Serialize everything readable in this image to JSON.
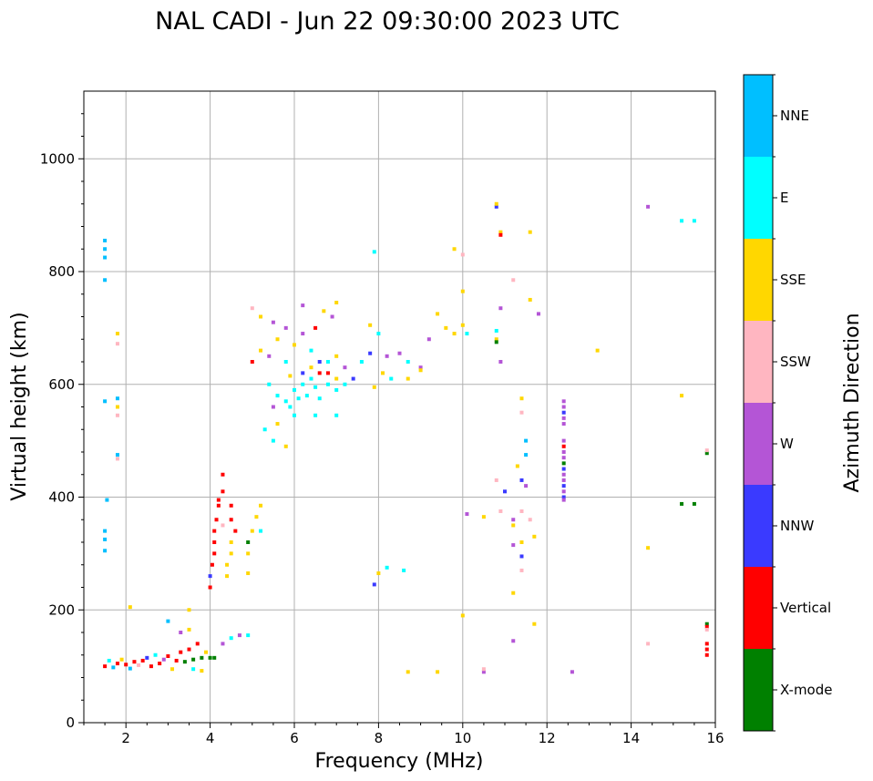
{
  "chart_data": {
    "type": "scatter",
    "title": "NAL CADI - Jun 22 09:30:00 2023 UTC",
    "xlabel": "Frequency (MHz)",
    "ylabel": "Virtual height (km)",
    "xlim": [
      1,
      16
    ],
    "ylim": [
      0,
      1120
    ],
    "xticks": [
      2,
      4,
      6,
      8,
      10,
      12,
      14,
      16
    ],
    "xtick_labels": [
      "2",
      "4",
      "6",
      "8",
      "10",
      "12",
      "14",
      "16"
    ],
    "yticks": [
      0,
      200,
      400,
      600,
      800,
      1000
    ],
    "ytick_labels": [
      "0",
      "200",
      "400",
      "600",
      "800",
      "1000"
    ],
    "grid": true,
    "colorbar": {
      "label": "Azimuth Direction",
      "categories": [
        {
          "name": "X-mode",
          "color": "#008000"
        },
        {
          "name": "Vertical",
          "color": "#ff0000"
        },
        {
          "name": "NNW",
          "color": "#3a3aff"
        },
        {
          "name": "W",
          "color": "#b455d6"
        },
        {
          "name": "SSW",
          "color": "#ffb6c1"
        },
        {
          "name": "SSE",
          "color": "#ffd700"
        },
        {
          "name": "E",
          "color": "#00ffff"
        },
        {
          "name": "NNE",
          "color": "#00bfff"
        }
      ]
    },
    "points": [
      {
        "f": 1.5,
        "h": 855,
        "c": "NNE"
      },
      {
        "f": 1.5,
        "h": 840,
        "c": "NNE"
      },
      {
        "f": 1.5,
        "h": 825,
        "c": "NNE"
      },
      {
        "f": 1.5,
        "h": 785,
        "c": "NNE"
      },
      {
        "f": 1.5,
        "h": 570,
        "c": "NNE"
      },
      {
        "f": 1.5,
        "h": 340,
        "c": "NNE"
      },
      {
        "f": 1.5,
        "h": 325,
        "c": "NNE"
      },
      {
        "f": 1.5,
        "h": 305,
        "c": "NNE"
      },
      {
        "f": 1.55,
        "h": 395,
        "c": "NNE"
      },
      {
        "f": 1.8,
        "h": 690,
        "c": "SSE"
      },
      {
        "f": 1.8,
        "h": 672,
        "c": "SSW"
      },
      {
        "f": 1.8,
        "h": 575,
        "c": "NNE"
      },
      {
        "f": 1.8,
        "h": 560,
        "c": "SSE"
      },
      {
        "f": 1.8,
        "h": 545,
        "c": "SSW"
      },
      {
        "f": 1.8,
        "h": 475,
        "c": "NNE"
      },
      {
        "f": 1.8,
        "h": 468,
        "c": "SSW"
      },
      {
        "f": 1.5,
        "h": 100,
        "c": "Vertical"
      },
      {
        "f": 1.6,
        "h": 110,
        "c": "E"
      },
      {
        "f": 1.7,
        "h": 98,
        "c": "NNE"
      },
      {
        "f": 1.8,
        "h": 105,
        "c": "Vertical"
      },
      {
        "f": 1.9,
        "h": 112,
        "c": "SSE"
      },
      {
        "f": 2.0,
        "h": 103,
        "c": "Vertical"
      },
      {
        "f": 2.1,
        "h": 96,
        "c": "NNE"
      },
      {
        "f": 2.2,
        "h": 108,
        "c": "Vertical"
      },
      {
        "f": 2.3,
        "h": 102,
        "c": "SSW"
      },
      {
        "f": 2.4,
        "h": 110,
        "c": "Vertical"
      },
      {
        "f": 2.5,
        "h": 115,
        "c": "NNW"
      },
      {
        "f": 2.6,
        "h": 100,
        "c": "Vertical"
      },
      {
        "f": 2.7,
        "h": 120,
        "c": "E"
      },
      {
        "f": 2.8,
        "h": 105,
        "c": "Vertical"
      },
      {
        "f": 2.9,
        "h": 112,
        "c": "W"
      },
      {
        "f": 3.0,
        "h": 118,
        "c": "Vertical"
      },
      {
        "f": 3.1,
        "h": 95,
        "c": "SSE"
      },
      {
        "f": 3.2,
        "h": 110,
        "c": "Vertical"
      },
      {
        "f": 3.3,
        "h": 125,
        "c": "Vertical"
      },
      {
        "f": 3.4,
        "h": 108,
        "c": "X-mode"
      },
      {
        "f": 3.5,
        "h": 130,
        "c": "Vertical"
      },
      {
        "f": 3.6,
        "h": 112,
        "c": "X-mode"
      },
      {
        "f": 3.7,
        "h": 140,
        "c": "Vertical"
      },
      {
        "f": 3.8,
        "h": 115,
        "c": "X-mode"
      },
      {
        "f": 3.9,
        "h": 125,
        "c": "SSE"
      },
      {
        "f": 4.0,
        "h": 115,
        "c": "X-mode"
      },
      {
        "f": 4.1,
        "h": 115,
        "c": "X-mode"
      },
      {
        "f": 3.5,
        "h": 165,
        "c": "SSE"
      },
      {
        "f": 3.5,
        "h": 200,
        "c": "SSE"
      },
      {
        "f": 2.1,
        "h": 205,
        "c": "SSE"
      },
      {
        "f": 3.0,
        "h": 180,
        "c": "NNE"
      },
      {
        "f": 3.3,
        "h": 160,
        "c": "W"
      },
      {
        "f": 4.3,
        "h": 140,
        "c": "W"
      },
      {
        "f": 4.5,
        "h": 150,
        "c": "E"
      },
      {
        "f": 4.7,
        "h": 155,
        "c": "W"
      },
      {
        "f": 4.9,
        "h": 155,
        "c": "E"
      },
      {
        "f": 3.6,
        "h": 95,
        "c": "E"
      },
      {
        "f": 3.8,
        "h": 92,
        "c": "SSE"
      },
      {
        "f": 4.0,
        "h": 240,
        "c": "Vertical"
      },
      {
        "f": 4.0,
        "h": 260,
        "c": "NNW"
      },
      {
        "f": 4.05,
        "h": 280,
        "c": "Vertical"
      },
      {
        "f": 4.1,
        "h": 300,
        "c": "Vertical"
      },
      {
        "f": 4.1,
        "h": 320,
        "c": "Vertical"
      },
      {
        "f": 4.1,
        "h": 340,
        "c": "Vertical"
      },
      {
        "f": 4.15,
        "h": 360,
        "c": "Vertical"
      },
      {
        "f": 4.2,
        "h": 385,
        "c": "Vertical"
      },
      {
        "f": 4.2,
        "h": 395,
        "c": "Vertical"
      },
      {
        "f": 4.3,
        "h": 410,
        "c": "Vertical"
      },
      {
        "f": 4.3,
        "h": 440,
        "c": "Vertical"
      },
      {
        "f": 4.4,
        "h": 260,
        "c": "SSE"
      },
      {
        "f": 4.4,
        "h": 280,
        "c": "SSE"
      },
      {
        "f": 4.5,
        "h": 300,
        "c": "SSE"
      },
      {
        "f": 4.5,
        "h": 320,
        "c": "SSE"
      },
      {
        "f": 4.3,
        "h": 350,
        "c": "SSW"
      },
      {
        "f": 4.6,
        "h": 340,
        "c": "Vertical"
      },
      {
        "f": 4.5,
        "h": 360,
        "c": "Vertical"
      },
      {
        "f": 4.5,
        "h": 385,
        "c": "Vertical"
      },
      {
        "f": 4.9,
        "h": 300,
        "c": "SSE"
      },
      {
        "f": 4.9,
        "h": 265,
        "c": "SSE"
      },
      {
        "f": 4.9,
        "h": 320,
        "c": "X-mode"
      },
      {
        "f": 5.0,
        "h": 340,
        "c": "SSE"
      },
      {
        "f": 5.1,
        "h": 365,
        "c": "SSE"
      },
      {
        "f": 5.2,
        "h": 340,
        "c": "E"
      },
      {
        "f": 5.2,
        "h": 385,
        "c": "SSE"
      },
      {
        "f": 5.0,
        "h": 735,
        "c": "SSW"
      },
      {
        "f": 5.2,
        "h": 720,
        "c": "SSE"
      },
      {
        "f": 5.5,
        "h": 710,
        "c": "W"
      },
      {
        "f": 5.8,
        "h": 700,
        "c": "W"
      },
      {
        "f": 6.2,
        "h": 740,
        "c": "W"
      },
      {
        "f": 6.5,
        "h": 700,
        "c": "Vertical"
      },
      {
        "f": 6.7,
        "h": 730,
        "c": "SSE"
      },
      {
        "f": 6.9,
        "h": 720,
        "c": "W"
      },
      {
        "f": 7.0,
        "h": 745,
        "c": "SSE"
      },
      {
        "f": 5.0,
        "h": 640,
        "c": "Vertical"
      },
      {
        "f": 5.2,
        "h": 660,
        "c": "SSE"
      },
      {
        "f": 5.4,
        "h": 650,
        "c": "W"
      },
      {
        "f": 5.6,
        "h": 680,
        "c": "SSE"
      },
      {
        "f": 5.8,
        "h": 640,
        "c": "E"
      },
      {
        "f": 6.0,
        "h": 670,
        "c": "SSE"
      },
      {
        "f": 6.2,
        "h": 690,
        "c": "W"
      },
      {
        "f": 6.4,
        "h": 660,
        "c": "E"
      },
      {
        "f": 6.6,
        "h": 640,
        "c": "NNW"
      },
      {
        "f": 6.8,
        "h": 620,
        "c": "Vertical"
      },
      {
        "f": 7.0,
        "h": 650,
        "c": "SSE"
      },
      {
        "f": 7.2,
        "h": 630,
        "c": "W"
      },
      {
        "f": 7.4,
        "h": 610,
        "c": "NNW"
      },
      {
        "f": 7.6,
        "h": 640,
        "c": "E"
      },
      {
        "f": 7.8,
        "h": 655,
        "c": "NNW"
      },
      {
        "f": 5.4,
        "h": 600,
        "c": "E"
      },
      {
        "f": 5.6,
        "h": 580,
        "c": "E"
      },
      {
        "f": 5.8,
        "h": 570,
        "c": "E"
      },
      {
        "f": 6.0,
        "h": 590,
        "c": "E"
      },
      {
        "f": 6.1,
        "h": 575,
        "c": "E"
      },
      {
        "f": 6.2,
        "h": 600,
        "c": "E"
      },
      {
        "f": 6.3,
        "h": 580,
        "c": "E"
      },
      {
        "f": 6.4,
        "h": 610,
        "c": "E"
      },
      {
        "f": 6.5,
        "h": 595,
        "c": "E"
      },
      {
        "f": 6.6,
        "h": 575,
        "c": "E"
      },
      {
        "f": 6.8,
        "h": 600,
        "c": "E"
      },
      {
        "f": 7.0,
        "h": 590,
        "c": "E"
      },
      {
        "f": 7.2,
        "h": 600,
        "c": "E"
      },
      {
        "f": 5.9,
        "h": 560,
        "c": "E"
      },
      {
        "f": 6.0,
        "h": 545,
        "c": "E"
      },
      {
        "f": 5.6,
        "h": 530,
        "c": "SSE"
      },
      {
        "f": 5.5,
        "h": 500,
        "c": "E"
      },
      {
        "f": 5.8,
        "h": 490,
        "c": "SSE"
      },
      {
        "f": 5.3,
        "h": 520,
        "c": "E"
      },
      {
        "f": 5.5,
        "h": 560,
        "c": "W"
      },
      {
        "f": 6.2,
        "h": 620,
        "c": "NNW"
      },
      {
        "f": 6.4,
        "h": 630,
        "c": "SSE"
      },
      {
        "f": 6.6,
        "h": 620,
        "c": "Vertical"
      },
      {
        "f": 6.8,
        "h": 640,
        "c": "E"
      },
      {
        "f": 7.0,
        "h": 610,
        "c": "SSE"
      },
      {
        "f": 5.9,
        "h": 615,
        "c": "SSE"
      },
      {
        "f": 6.5,
        "h": 545,
        "c": "E"
      },
      {
        "f": 7.0,
        "h": 545,
        "c": "E"
      },
      {
        "f": 7.9,
        "h": 835,
        "c": "E"
      },
      {
        "f": 8.0,
        "h": 690,
        "c": "E"
      },
      {
        "f": 7.8,
        "h": 705,
        "c": "SSE"
      },
      {
        "f": 8.1,
        "h": 620,
        "c": "SSE"
      },
      {
        "f": 8.2,
        "h": 650,
        "c": "W"
      },
      {
        "f": 8.3,
        "h": 610,
        "c": "E"
      },
      {
        "f": 8.5,
        "h": 655,
        "c": "W"
      },
      {
        "f": 8.7,
        "h": 640,
        "c": "E"
      },
      {
        "f": 8.7,
        "h": 610,
        "c": "SSE"
      },
      {
        "f": 9.0,
        "h": 630,
        "c": "W"
      },
      {
        "f": 9.0,
        "h": 625,
        "c": "SSE"
      },
      {
        "f": 7.9,
        "h": 595,
        "c": "SSE"
      },
      {
        "f": 9.2,
        "h": 680,
        "c": "W"
      },
      {
        "f": 9.4,
        "h": 725,
        "c": "SSE"
      },
      {
        "f": 9.6,
        "h": 700,
        "c": "SSE"
      },
      {
        "f": 9.8,
        "h": 690,
        "c": "SSE"
      },
      {
        "f": 9.8,
        "h": 840,
        "c": "SSE"
      },
      {
        "f": 10.0,
        "h": 830,
        "c": "SSW"
      },
      {
        "f": 10.0,
        "h": 765,
        "c": "SSE"
      },
      {
        "f": 10.1,
        "h": 690,
        "c": "E"
      },
      {
        "f": 10.0,
        "h": 705,
        "c": "SSE"
      },
      {
        "f": 10.8,
        "h": 695,
        "c": "E"
      },
      {
        "f": 10.8,
        "h": 680,
        "c": "SSE"
      },
      {
        "f": 10.8,
        "h": 675,
        "c": "X-mode"
      },
      {
        "f": 10.8,
        "h": 915,
        "c": "NNW"
      },
      {
        "f": 10.8,
        "h": 920,
        "c": "SSE"
      },
      {
        "f": 10.9,
        "h": 870,
        "c": "SSE"
      },
      {
        "f": 10.9,
        "h": 865,
        "c": "Vertical"
      },
      {
        "f": 10.9,
        "h": 735,
        "c": "W"
      },
      {
        "f": 10.9,
        "h": 640,
        "c": "W"
      },
      {
        "f": 11.2,
        "h": 785,
        "c": "SSW"
      },
      {
        "f": 11.6,
        "h": 870,
        "c": "SSE"
      },
      {
        "f": 11.6,
        "h": 750,
        "c": "SSE"
      },
      {
        "f": 11.8,
        "h": 725,
        "c": "W"
      },
      {
        "f": 13.2,
        "h": 660,
        "c": "SSE"
      },
      {
        "f": 11.4,
        "h": 575,
        "c": "SSE"
      },
      {
        "f": 11.4,
        "h": 550,
        "c": "SSW"
      },
      {
        "f": 11.5,
        "h": 500,
        "c": "NNE"
      },
      {
        "f": 11.5,
        "h": 475,
        "c": "NNE"
      },
      {
        "f": 11.3,
        "h": 455,
        "c": "SSE"
      },
      {
        "f": 11.5,
        "h": 420,
        "c": "W"
      },
      {
        "f": 11.4,
        "h": 430,
        "c": "NNW"
      },
      {
        "f": 11.0,
        "h": 410,
        "c": "NNW"
      },
      {
        "f": 10.8,
        "h": 430,
        "c": "SSW"
      },
      {
        "f": 10.9,
        "h": 375,
        "c": "SSW"
      },
      {
        "f": 11.2,
        "h": 360,
        "c": "W"
      },
      {
        "f": 11.2,
        "h": 350,
        "c": "SSE"
      },
      {
        "f": 11.4,
        "h": 375,
        "c": "SSW"
      },
      {
        "f": 11.4,
        "h": 320,
        "c": "SSE"
      },
      {
        "f": 11.6,
        "h": 360,
        "c": "SSW"
      },
      {
        "f": 11.7,
        "h": 330,
        "c": "SSE"
      },
      {
        "f": 11.4,
        "h": 295,
        "c": "NNW"
      },
      {
        "f": 11.4,
        "h": 270,
        "c": "SSW"
      },
      {
        "f": 11.2,
        "h": 315,
        "c": "W"
      },
      {
        "f": 11.2,
        "h": 230,
        "c": "SSE"
      },
      {
        "f": 10.1,
        "h": 370,
        "c": "W"
      },
      {
        "f": 10.5,
        "h": 365,
        "c": "SSE"
      },
      {
        "f": 11.7,
        "h": 175,
        "c": "SSE"
      },
      {
        "f": 11.2,
        "h": 145,
        "c": "W"
      },
      {
        "f": 10.0,
        "h": 190,
        "c": "SSE"
      },
      {
        "f": 10.5,
        "h": 90,
        "c": "W"
      },
      {
        "f": 10.5,
        "h": 95,
        "c": "SSW"
      },
      {
        "f": 9.4,
        "h": 90,
        "c": "SSE"
      },
      {
        "f": 8.7,
        "h": 90,
        "c": "SSE"
      },
      {
        "f": 8.0,
        "h": 265,
        "c": "SSE"
      },
      {
        "f": 8.2,
        "h": 275,
        "c": "E"
      },
      {
        "f": 8.6,
        "h": 270,
        "c": "E"
      },
      {
        "f": 7.9,
        "h": 245,
        "c": "NNW"
      },
      {
        "f": 12.6,
        "h": 90,
        "c": "W"
      },
      {
        "f": 14.4,
        "h": 140,
        "c": "SSW"
      },
      {
        "f": 14.4,
        "h": 310,
        "c": "SSE"
      },
      {
        "f": 14.4,
        "h": 915,
        "c": "W"
      },
      {
        "f": 15.2,
        "h": 890,
        "c": "E"
      },
      {
        "f": 15.5,
        "h": 890,
        "c": "E"
      },
      {
        "f": 15.2,
        "h": 580,
        "c": "SSE"
      },
      {
        "f": 15.2,
        "h": 388,
        "c": "X-mode"
      },
      {
        "f": 15.5,
        "h": 388,
        "c": "X-mode"
      },
      {
        "f": 15.8,
        "h": 478,
        "c": "X-mode"
      },
      {
        "f": 15.8,
        "h": 483,
        "c": "SSW"
      },
      {
        "f": 15.8,
        "h": 175,
        "c": "X-mode"
      },
      {
        "f": 15.8,
        "h": 170,
        "c": "Vertical"
      },
      {
        "f": 15.8,
        "h": 165,
        "c": "SSW"
      },
      {
        "f": 15.8,
        "h": 140,
        "c": "Vertical"
      },
      {
        "f": 15.8,
        "h": 130,
        "c": "Vertical"
      },
      {
        "f": 15.8,
        "h": 120,
        "c": "Vertical"
      },
      {
        "f": 12.4,
        "h": 570,
        "c": "W"
      },
      {
        "f": 12.4,
        "h": 560,
        "c": "W"
      },
      {
        "f": 12.4,
        "h": 550,
        "c": "NNW"
      },
      {
        "f": 12.4,
        "h": 540,
        "c": "W"
      },
      {
        "f": 12.4,
        "h": 530,
        "c": "W"
      },
      {
        "f": 12.4,
        "h": 500,
        "c": "W"
      },
      {
        "f": 12.4,
        "h": 490,
        "c": "Vertical"
      },
      {
        "f": 12.4,
        "h": 480,
        "c": "W"
      },
      {
        "f": 12.4,
        "h": 470,
        "c": "W"
      },
      {
        "f": 12.4,
        "h": 460,
        "c": "X-mode"
      },
      {
        "f": 12.4,
        "h": 450,
        "c": "NNW"
      },
      {
        "f": 12.4,
        "h": 440,
        "c": "W"
      },
      {
        "f": 12.4,
        "h": 430,
        "c": "W"
      },
      {
        "f": 12.4,
        "h": 420,
        "c": "NNW"
      },
      {
        "f": 12.4,
        "h": 410,
        "c": "W"
      },
      {
        "f": 12.4,
        "h": 400,
        "c": "NNW"
      },
      {
        "f": 12.4,
        "h": 395,
        "c": "W"
      }
    ]
  }
}
